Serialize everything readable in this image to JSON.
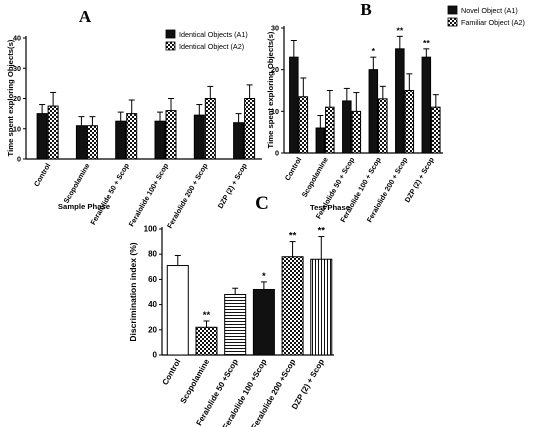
{
  "chart_data": [
    {
      "type": "bar",
      "panel_label": "A",
      "ylabel": "Time spent exploring Objects(s)",
      "xlabel": "Sample Phase",
      "ylim": [
        0,
        40
      ],
      "yticks": [
        0,
        10,
        20,
        30,
        40
      ],
      "categories": [
        "Control",
        "Scopolamine",
        "Feralolide 50 + Scop",
        "Feralolide 100+ Scop",
        "Feralolide 200 + Scop",
        "DZP (2) + Scop"
      ],
      "series": [
        {
          "name": "Identical Objects (A1)",
          "style": "solid",
          "values": [
            15,
            11,
            12.5,
            12.5,
            14.5,
            12
          ],
          "errors": [
            3,
            3,
            3,
            3,
            3.5,
            3
          ]
        },
        {
          "name": "Identical Object (A2)",
          "style": "checker",
          "values": [
            17.5,
            11,
            15,
            16,
            20,
            20
          ],
          "errors": [
            4.5,
            3,
            4.5,
            4,
            4,
            4.5
          ]
        }
      ],
      "annotations": [],
      "grid": false,
      "legend_position": "top-right"
    },
    {
      "type": "bar",
      "panel_label": "B",
      "ylabel": "Time spent exploring Objects(s)",
      "xlabel": "Test Phase",
      "ylim": [
        0,
        30
      ],
      "yticks": [
        0,
        10,
        20,
        30
      ],
      "categories": [
        "Control",
        "Scopolamine",
        "Feralolide 50 + Scop",
        "Feralolide 100 + Scop",
        "Feralolide 200 + Scop",
        "DZP (2) + Scop"
      ],
      "series": [
        {
          "name": "Novel Object (A1)",
          "style": "solid",
          "values": [
            23,
            6,
            12.5,
            20,
            25,
            23
          ],
          "errors": [
            4,
            3,
            3,
            3,
            3,
            2
          ]
        },
        {
          "name": "Familiar Object (A2)",
          "style": "checker",
          "values": [
            13.5,
            11,
            10,
            13,
            15,
            11
          ],
          "errors": [
            4.5,
            4,
            4.5,
            3,
            4,
            3
          ]
        }
      ],
      "annotations": [
        {
          "category": "Feralolide 100 + Scop",
          "text": "*"
        },
        {
          "category": "Feralolide 200 + Scop",
          "text": "**"
        },
        {
          "category": "DZP (2) + Scop",
          "text": "**"
        }
      ],
      "grid": false,
      "legend_position": "top-right"
    },
    {
      "type": "bar",
      "panel_label": "C",
      "ylabel": "Discrimination index (%)",
      "xlabel": "",
      "ylim": [
        0,
        100
      ],
      "yticks": [
        0,
        20,
        40,
        60,
        80,
        100
      ],
      "categories": [
        "Control",
        "Scopolamine",
        "Feralolide 50 +Scop",
        "Feralolide 100 +Scop",
        "Feralolide 200 +Scop",
        "DZP (2) + Scop"
      ],
      "series": [
        {
          "values": [
            71,
            22,
            48,
            52,
            78,
            76
          ],
          "errors": [
            8,
            5,
            5,
            6,
            12,
            18
          ],
          "styles": [
            "white",
            "checker",
            "hlines",
            "solid",
            "diag",
            "vlines"
          ]
        }
      ],
      "annotations": [
        {
          "category": "Scopolamine",
          "text": "**"
        },
        {
          "category": "Feralolide 100 +Scop",
          "text": "*"
        },
        {
          "category": "Feralolide 200 +Scop",
          "text": "**"
        },
        {
          "category": "DZP (2) + Scop",
          "text": "**"
        }
      ],
      "grid": false,
      "legend_position": "none"
    }
  ]
}
